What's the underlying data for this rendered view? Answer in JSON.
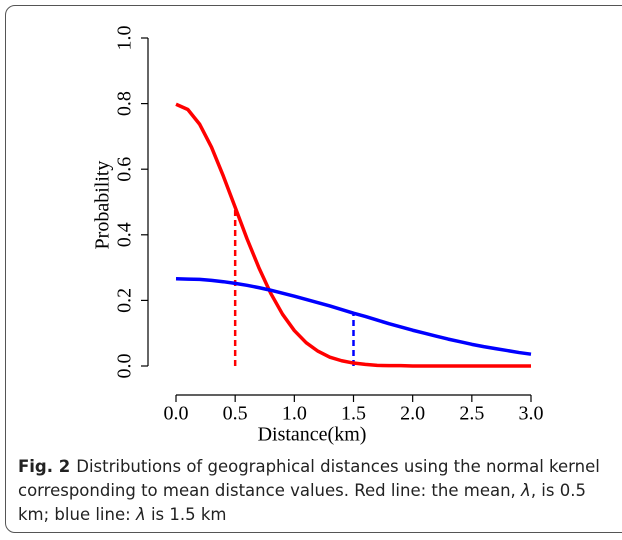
{
  "chart_data": {
    "type": "line",
    "xlabel": "Distance(km)",
    "ylabel": "Probability",
    "x": [
      0,
      0.1,
      0.2,
      0.3,
      0.4,
      0.5,
      0.6,
      0.7,
      0.8,
      0.9,
      1.0,
      1.1,
      1.2,
      1.3,
      1.4,
      1.5,
      1.6,
      1.7,
      1.8,
      1.9,
      2.0,
      2.1,
      2.2,
      2.3,
      2.4,
      2.5,
      2.6,
      2.7,
      2.8,
      2.9,
      3.0
    ],
    "series": [
      {
        "color": "#ff0000",
        "values": [
          0.798,
          0.782,
          0.737,
          0.667,
          0.579,
          0.484,
          0.388,
          0.3,
          0.222,
          0.158,
          0.108,
          0.071,
          0.045,
          0.027,
          0.016,
          0.009,
          0.005,
          0.002,
          0.001,
          0.001,
          0,
          0,
          0,
          0,
          0,
          0,
          0,
          0,
          0,
          0,
          0
        ]
      },
      {
        "color": "#0000ff",
        "values": [
          0.266,
          0.265,
          0.264,
          0.261,
          0.257,
          0.252,
          0.246,
          0.239,
          0.231,
          0.222,
          0.213,
          0.203,
          0.193,
          0.183,
          0.172,
          0.161,
          0.151,
          0.14,
          0.129,
          0.119,
          0.109,
          0.1,
          0.091,
          0.082,
          0.074,
          0.066,
          0.059,
          0.053,
          0.047,
          0.041,
          0.036
        ]
      }
    ],
    "drop_lines": [
      {
        "x": 0.5,
        "y": 0.484,
        "color": "#ff0000"
      },
      {
        "x": 1.5,
        "y": 0.161,
        "color": "#0000ff"
      }
    ],
    "xlim": [
      0,
      3
    ],
    "ylim": [
      0,
      1
    ],
    "xticks": [
      {
        "value": 0,
        "label": "0.0"
      },
      0.5,
      {
        "value": 1,
        "label": "1.0"
      },
      1.5,
      {
        "value": 2,
        "label": "2.0"
      },
      2.5,
      {
        "value": 3,
        "label": "3.0"
      }
    ],
    "yticks": [
      {
        "value": 0,
        "label": "0.0"
      },
      0.2,
      0.4,
      0.6,
      0.8,
      {
        "value": 1,
        "label": "1.0"
      }
    ]
  },
  "caption": {
    "label": "Fig. 2",
    "parts": [
      "Distributions of geographical distances using the normal kernel corresponding to mean distance values. Red line: the mean, ",
      "λ",
      ", is 0.5 km; blue line: ",
      "λ",
      " is 1.5 km"
    ]
  }
}
